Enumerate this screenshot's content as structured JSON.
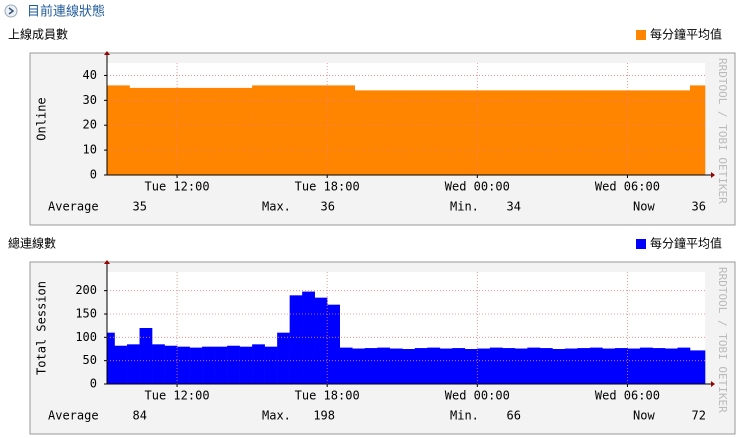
{
  "page_title": "目前連線狀態",
  "chart_data": [
    {
      "type": "step-area",
      "title": "上線成員數",
      "ylabel": "Online",
      "watermark": "RRDTOOL / TOBI OETIKER",
      "series": [
        {
          "name": "每分鐘平均值",
          "color": "#ff8400",
          "x": [
            9.2,
            10.1,
            15.0,
            19.1,
            32.5
          ],
          "values": [
            36,
            35,
            36,
            34,
            36
          ]
        }
      ],
      "xlim": [
        9.2,
        33.1
      ],
      "xticks": [
        {
          "value": 12,
          "label": "Tue 12:00"
        },
        {
          "value": 18,
          "label": "Tue 18:00"
        },
        {
          "value": 24,
          "label": "Wed 00:00"
        },
        {
          "value": 30,
          "label": "Wed 06:00"
        }
      ],
      "ylim": [
        0,
        45
      ],
      "yticks": [
        0,
        10,
        20,
        30,
        40
      ],
      "grid": true,
      "stats": [
        {
          "label": "Average",
          "value": 35
        },
        {
          "label": "Max.",
          "value": 36
        },
        {
          "label": "Min.",
          "value": 34
        },
        {
          "label": "Now",
          "value": 36
        }
      ]
    },
    {
      "type": "step-area",
      "title": "總連線數",
      "ylabel": "Total Session",
      "watermark": "RRDTOOL / TOBI OETIKER",
      "series": [
        {
          "name": "每分鐘平均值",
          "color": "#0000ff",
          "x": [
            9.2,
            9.5,
            10,
            10.5,
            11,
            11.5,
            12,
            12.5,
            13,
            13.5,
            14,
            14.5,
            15,
            15.5,
            16,
            16.5,
            17,
            17.5,
            18,
            18.5,
            19,
            19.5,
            20,
            20.5,
            21,
            21.5,
            22,
            22.5,
            23,
            23.5,
            24,
            24.5,
            25,
            25.5,
            26,
            26.5,
            27,
            27.5,
            28,
            28.5,
            29,
            29.5,
            30,
            30.5,
            31,
            31.5,
            32,
            32.5
          ],
          "values": [
            110,
            82,
            85,
            120,
            85,
            82,
            80,
            78,
            80,
            80,
            82,
            80,
            85,
            80,
            110,
            190,
            198,
            185,
            170,
            78,
            76,
            77,
            78,
            76,
            75,
            77,
            78,
            76,
            77,
            75,
            76,
            78,
            77,
            76,
            78,
            77,
            75,
            76,
            77,
            78,
            76,
            77,
            76,
            78,
            77,
            76,
            78,
            72
          ]
        }
      ],
      "xlim": [
        9.2,
        33.1
      ],
      "xticks": [
        {
          "value": 12,
          "label": "Tue 12:00"
        },
        {
          "value": 18,
          "label": "Tue 18:00"
        },
        {
          "value": 24,
          "label": "Wed 00:00"
        },
        {
          "value": 30,
          "label": "Wed 06:00"
        }
      ],
      "ylim": [
        0,
        240
      ],
      "yticks": [
        0,
        50,
        100,
        150,
        200
      ],
      "grid": true,
      "stats": [
        {
          "label": "Average",
          "value": 84
        },
        {
          "label": "Max.",
          "value": 198
        },
        {
          "label": "Min.",
          "value": 66
        },
        {
          "label": "Now",
          "value": 72
        }
      ]
    }
  ]
}
